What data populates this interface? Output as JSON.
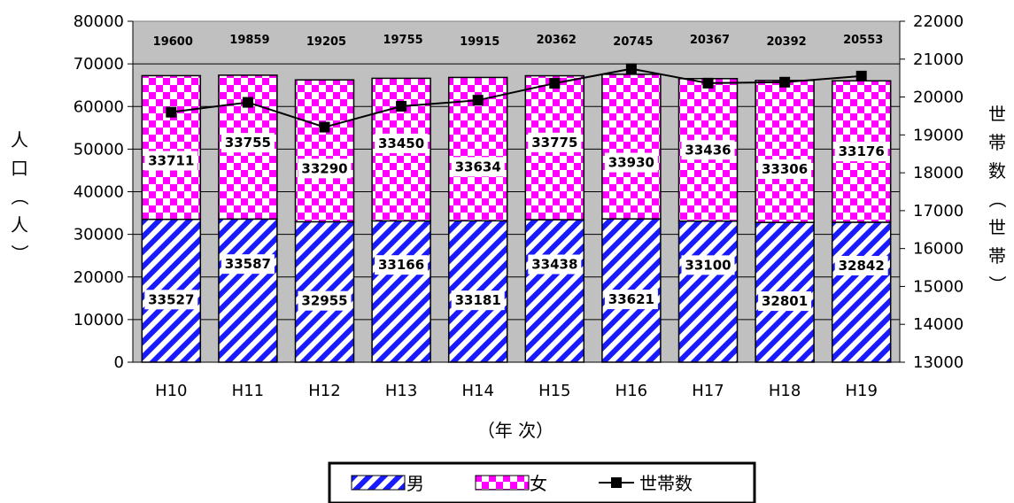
{
  "chart_data": {
    "type": "bar",
    "stacked": true,
    "categories": [
      "H10",
      "H11",
      "H12",
      "H13",
      "H14",
      "H15",
      "H16",
      "H17",
      "H18",
      "H19"
    ],
    "series": [
      {
        "name": "男",
        "axis": "left",
        "pattern": "diagonal-stripes",
        "color": "#1a1aff",
        "values": [
          33527,
          33587,
          32955,
          33166,
          33181,
          33438,
          33621,
          33100,
          32801,
          32842
        ]
      },
      {
        "name": "女",
        "axis": "left",
        "pattern": "checkerboard",
        "color": "#ff00ff",
        "values": [
          33711,
          33755,
          33290,
          33450,
          33634,
          33775,
          33930,
          33436,
          33306,
          33176
        ]
      },
      {
        "name": "世帯数",
        "axis": "right",
        "type": "line",
        "marker": "square",
        "color": "#000000",
        "values": [
          19600,
          19859,
          19205,
          19755,
          19915,
          20362,
          20745,
          20367,
          20392,
          20553
        ]
      }
    ],
    "ylabel": "人口（人）",
    "y2label": "世帯数（世帯）",
    "xlabel": "（年 次）",
    "ylim": [
      0,
      80000
    ],
    "y2lim": [
      13000,
      22000
    ],
    "yticks": [
      "0",
      "10000",
      "20000",
      "30000",
      "40000",
      "50000",
      "60000",
      "70000",
      "80000"
    ],
    "y2ticks": [
      "13000",
      "14000",
      "15000",
      "16000",
      "17000",
      "18000",
      "19000",
      "20000",
      "21000",
      "22000"
    ],
    "grid": true,
    "plot_background": "#c0c0c0",
    "legend_position": "bottom"
  }
}
